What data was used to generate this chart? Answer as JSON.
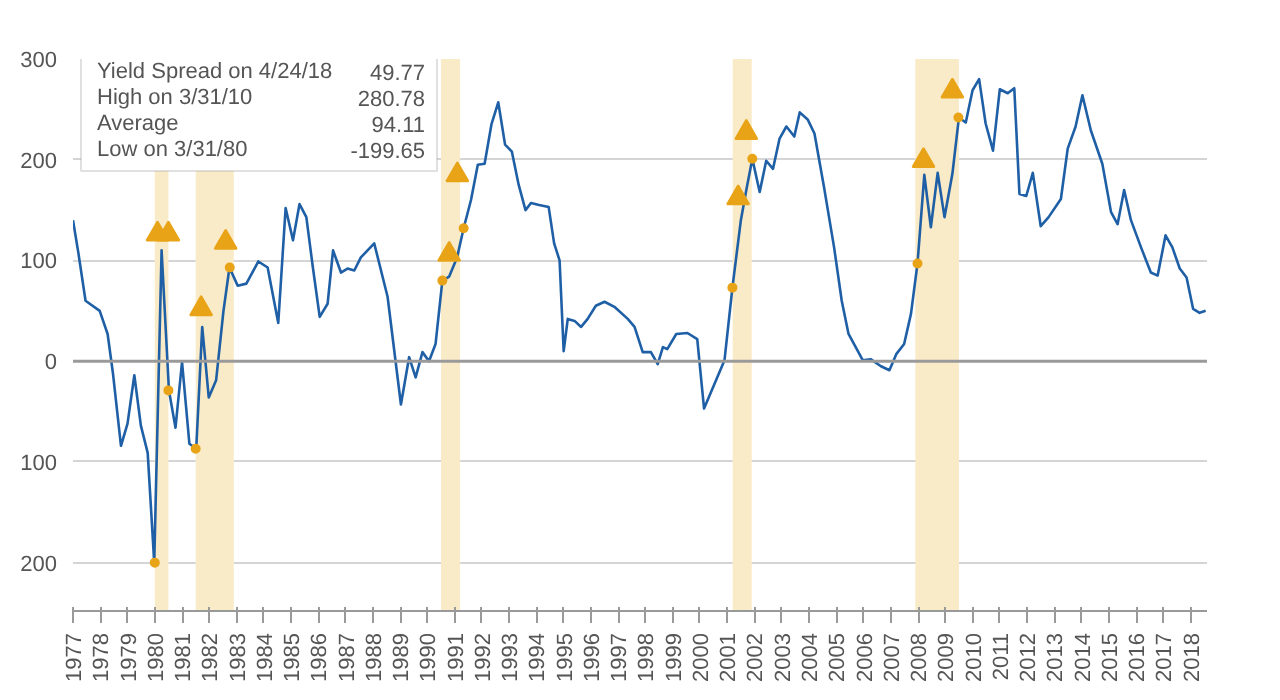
{
  "chart_data": {
    "type": "line",
    "annotations": [
      "Yield Spread on 4/24/18",
      "49.77",
      "High on 3/31/10",
      "280.78",
      "Average",
      "94.11",
      "Low on 3/31/80",
      "-199.65"
    ],
    "xlim": [
      1977,
      2018.6
    ],
    "ylim": [
      -248,
      300
    ],
    "xticks": [
      1977,
      1978,
      1979,
      1980,
      1981,
      1982,
      1983,
      1984,
      1985,
      1986,
      1987,
      1988,
      1989,
      1990,
      1991,
      1992,
      1993,
      1994,
      1995,
      1996,
      1997,
      1998,
      1999,
      2000,
      2001,
      2002,
      2003,
      2004,
      2005,
      2006,
      2007,
      2008,
      2009,
      2010,
      2011,
      2012,
      2013,
      2014,
      2015,
      2016,
      2017,
      2018
    ],
    "yticks": [
      300,
      200,
      100,
      0,
      {
        "value": -100,
        "label": "100"
      },
      {
        "value": -200,
        "label": "200"
      }
    ],
    "grid": "y",
    "ref_lines": [
      {
        "axis": "y",
        "value": 0,
        "color": "#9a9a9a"
      }
    ],
    "bands": [
      {
        "axis": "x",
        "from": 1980.0,
        "to": 1980.5,
        "color": "#faebc8"
      },
      {
        "axis": "x",
        "from": 1981.5,
        "to": 1982.9,
        "color": "#faebc8"
      },
      {
        "axis": "x",
        "from": 1990.5,
        "to": 1991.2,
        "color": "#faebc8"
      },
      {
        "axis": "x",
        "from": 2001.2,
        "to": 2001.9,
        "color": "#faebc8"
      },
      {
        "axis": "x",
        "from": 2007.9,
        "to": 2009.5,
        "color": "#faebc8"
      }
    ],
    "series": [
      {
        "color": "#1f5fa6",
        "marker": "none",
        "x": [
          1977.0,
          1977.2,
          1977.46,
          1977.98,
          1978.27,
          1978.47,
          1978.76,
          1979.0,
          1979.25,
          1979.49,
          1979.74,
          1979.98,
          1980.25,
          1980.52,
          1980.76,
          1981.0,
          1981.27,
          1981.52,
          1981.74,
          1981.98,
          1982.25,
          1982.52,
          1982.74,
          1983.04,
          1983.36,
          1983.8,
          1984.14,
          1984.53,
          1984.8,
          1985.07,
          1985.31,
          1985.56,
          1985.8,
          1986.05,
          1986.34,
          1986.54,
          1986.83,
          1987.07,
          1987.32,
          1987.56,
          1988.05,
          1988.54,
          1989.03,
          1989.33,
          1989.57,
          1989.82,
          1990.06,
          1990.3,
          1990.55,
          1990.8,
          1991.09,
          1991.33,
          1991.6,
          1991.85,
          1992.1,
          1992.35,
          1992.6,
          1992.85,
          1993.1,
          1993.35,
          1993.6,
          1993.8,
          1994.1,
          1994.45,
          1994.65,
          1994.85,
          1995.0,
          1995.15,
          1995.4,
          1995.64,
          1995.88,
          1996.18,
          1996.5,
          1996.86,
          1997.35,
          1997.6,
          1997.9,
          1998.2,
          1998.45,
          1998.64,
          1998.8,
          1999.13,
          1999.54,
          1999.9,
          2000.15,
          2000.9,
          2001.19,
          2001.5,
          2001.7,
          2001.92,
          2002.19,
          2002.43,
          2002.68,
          2002.92,
          2003.17,
          2003.46,
          2003.66,
          2003.95,
          2004.2,
          2004.55,
          2004.92,
          2005.2,
          2005.45,
          2005.97,
          2006.26,
          2006.64,
          2006.95,
          2007.2,
          2007.49,
          2007.74,
          2007.98,
          2008.23,
          2008.47,
          2008.72,
          2008.97,
          2009.26,
          2009.5,
          2009.75,
          2010.0,
          2010.24,
          2010.48,
          2010.75,
          2011.0,
          2011.29,
          2011.53,
          2011.72,
          2011.97,
          2012.21,
          2012.5,
          2012.79,
          2013.24,
          2013.49,
          2013.78,
          2014.03,
          2014.34,
          2014.76,
          2015.08,
          2015.32,
          2015.56,
          2015.81,
          2016.18,
          2016.54,
          2016.79,
          2017.08,
          2017.33,
          2017.6,
          2017.85,
          2018.09,
          2018.33,
          2018.55
        ],
        "values": [
          140,
          107,
          60,
          50,
          27,
          -13,
          -84,
          -62,
          -14,
          -64,
          -91,
          -200,
          110,
          -29,
          -66,
          -1,
          -82,
          -87,
          34,
          -36,
          -19,
          50,
          93,
          75,
          77,
          99,
          93,
          38,
          152,
          120,
          156,
          143,
          93,
          44,
          57,
          110,
          88,
          92,
          90,
          103,
          117,
          64,
          -43,
          4,
          -16,
          9,
          0,
          17,
          80,
          84,
          103,
          132,
          160,
          195,
          196,
          235,
          257,
          215,
          208,
          175,
          150,
          157,
          155,
          153,
          117,
          100,
          10,
          42,
          40,
          34,
          42,
          55,
          59,
          54,
          42,
          34,
          9,
          9,
          -3,
          14,
          12,
          27,
          28,
          22,
          -47,
          1,
          73,
          140,
          170,
          201,
          168,
          199,
          191,
          221,
          233,
          223,
          247,
          240,
          226,
          173,
          113,
          60,
          27,
          1,
          2,
          -5,
          -9,
          7,
          17,
          47,
          97,
          185,
          133,
          187,
          143,
          186,
          242,
          237,
          269,
          280,
          236,
          209,
          270,
          266,
          271,
          166,
          164,
          187,
          134,
          143,
          161,
          211,
          233,
          264,
          229,
          196,
          148,
          136,
          170,
          140,
          113,
          88,
          85,
          125,
          113,
          92,
          83,
          52,
          48,
          50
        ]
      },
      {
        "type": "scatter",
        "color": "#e8a317",
        "marker": "triangle",
        "x": [
          1980.1,
          1980.5,
          1981.7,
          1982.6,
          1990.8,
          1991.1,
          2001.4,
          2001.7,
          2008.2,
          2009.26
        ],
        "values": [
          126,
          126,
          52,
          118,
          106,
          185,
          162,
          227,
          199,
          268
        ]
      },
      {
        "type": "scatter",
        "color": "#e8a317",
        "marker": "circle",
        "x": [
          1980.0,
          1980.5,
          1981.5,
          1982.75,
          1990.55,
          1991.33,
          2001.19,
          2001.92,
          2007.98,
          2009.48
        ],
        "values": [
          -200,
          -29,
          -87,
          93,
          80,
          132,
          73,
          201,
          97,
          242
        ]
      }
    ]
  }
}
